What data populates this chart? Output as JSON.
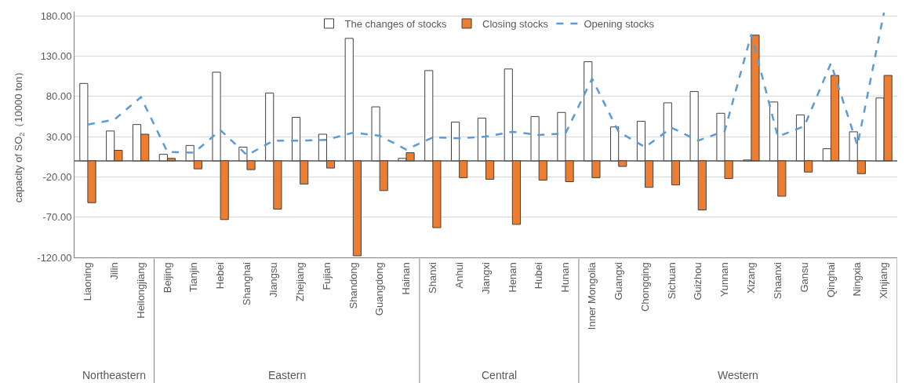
{
  "chart_data": {
    "type": "bar",
    "ylabel": "capacity of SO$_{2}$（10000 ton）",
    "categories": [
      "Liaoning",
      "Jilin",
      "Heilongjiang",
      "Beijing",
      "Tianjin",
      "Hebei",
      "Shanghai",
      "Jiangsu",
      "Zhejiang",
      "Fujian",
      "Shandong",
      "Guangdong",
      "Hainan",
      "Shanxi",
      "Anhui",
      "Jiangxi",
      "Henan",
      "Hubei",
      "Hunan",
      "Inner Mongolia",
      "Guangxi",
      "Chongqing",
      "Sichuan",
      "Guizhou",
      "Yunnan",
      "Xizang",
      "Shaanxi",
      "Gansu",
      "Qinghai",
      "Ningxia",
      "Xinjiang"
    ],
    "series": [
      {
        "name": "The changes of stocks",
        "color": "#ffffff",
        "values": [
          96,
          37,
          45,
          8,
          19,
          110,
          17,
          84,
          54,
          33,
          152,
          67,
          3,
          112,
          48,
          53,
          114,
          55,
          60,
          123,
          42,
          49,
          72,
          86,
          59,
          1,
          73,
          57,
          15,
          36,
          78
        ]
      },
      {
        "name": "Closing stocks",
        "color": "#ed7d31",
        "values": [
          -52,
          13,
          33,
          3,
          -10,
          -73,
          -11,
          -60,
          -29,
          -9,
          -118,
          -37,
          10,
          -83,
          -21,
          -23,
          -79,
          -24,
          -26,
          -21,
          -7,
          -33,
          -30,
          -61,
          -22,
          156,
          -44,
          -14,
          106,
          -16,
          106
        ]
      },
      {
        "name": "Opening stocks",
        "type": "line",
        "color": "#5b9bd5",
        "line_style": "dashed",
        "values": [
          45,
          51,
          79,
          11,
          10,
          38,
          7,
          25,
          25,
          26,
          35,
          31,
          14,
          29,
          28,
          30,
          36,
          32,
          34,
          102,
          36,
          17,
          41,
          25,
          37,
          157,
          30,
          43,
          121,
          19,
          184
        ]
      }
    ],
    "ylim": [
      -120,
      185
    ],
    "yticks": [
      {
        "value": -120,
        "label": "-120.00"
      },
      {
        "value": -70,
        "label": "-70.00"
      },
      {
        "value": -20,
        "label": "-20.00"
      },
      {
        "value": 30,
        "label": "30.00"
      },
      {
        "value": 80,
        "label": "80.00"
      },
      {
        "value": 130,
        "label": "130.00"
      },
      {
        "value": 180,
        "label": "180.00"
      }
    ],
    "grid": "y",
    "legend": "top",
    "annotations": [
      "Northeastern",
      "Eastern",
      "Central",
      "Western"
    ]
  }
}
